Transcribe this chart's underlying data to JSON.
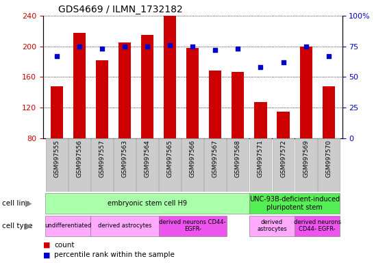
{
  "title": "GDS4669 / ILMN_1732182",
  "samples": [
    "GSM997555",
    "GSM997556",
    "GSM997557",
    "GSM997563",
    "GSM997564",
    "GSM997565",
    "GSM997566",
    "GSM997567",
    "GSM997568",
    "GSM997571",
    "GSM997572",
    "GSM997569",
    "GSM997570"
  ],
  "counts": [
    148,
    218,
    182,
    205,
    215,
    240,
    198,
    168,
    167,
    127,
    115,
    200,
    148
  ],
  "percentile_ranks": [
    67,
    75,
    73,
    75,
    75,
    76,
    75,
    72,
    73,
    58,
    62,
    75,
    67
  ],
  "ylim_left": [
    80,
    240
  ],
  "ylim_right": [
    0,
    100
  ],
  "yticks_left": [
    80,
    120,
    160,
    200,
    240
  ],
  "yticks_right": [
    0,
    25,
    50,
    75,
    100
  ],
  "bar_color": "#cc0000",
  "dot_color": "#0000cc",
  "cell_line_row": [
    {
      "label": "embryonic stem cell H9",
      "start": 0,
      "end": 8,
      "color": "#aaffaa"
    },
    {
      "label": "UNC-93B-deficient-induced\npluripotent stem",
      "start": 9,
      "end": 12,
      "color": "#55ee55"
    }
  ],
  "cell_type_row": [
    {
      "label": "undifferentiated",
      "start": 0,
      "end": 1,
      "color": "#ffaaff"
    },
    {
      "label": "derived astrocytes",
      "start": 2,
      "end": 4,
      "color": "#ffaaff"
    },
    {
      "label": "derived neurons CD44-\nEGFR-",
      "start": 5,
      "end": 7,
      "color": "#ee55ee"
    },
    {
      "label": "derived\nastrocytes",
      "start": 9,
      "end": 10,
      "color": "#ffaaff"
    },
    {
      "label": "derived neurons\nCD44- EGFR-",
      "start": 11,
      "end": 12,
      "color": "#ee55ee"
    }
  ],
  "legend_count_color": "#cc0000",
  "legend_pct_color": "#0000cc",
  "left_axis_color": "#cc0000",
  "right_axis_color": "#0000cc",
  "sample_box_color": "#cccccc",
  "sample_box_edge": "#aaaaaa"
}
